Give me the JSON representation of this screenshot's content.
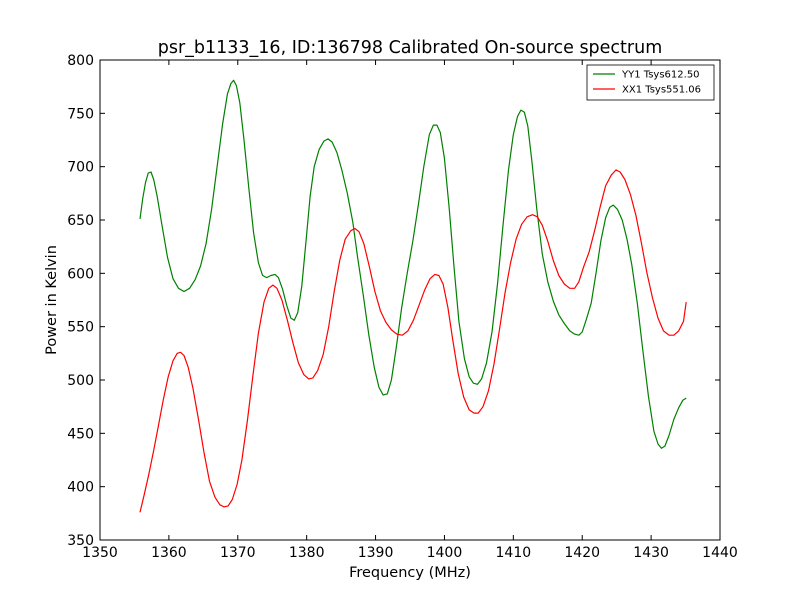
{
  "chart_data": {
    "type": "line",
    "title": "psr_b1133_16, ID:136798 Calibrated On-source spectrum",
    "xlabel": "Frequency (MHz)",
    "ylabel": "Power in Kelvin",
    "xlim": [
      1350,
      1440
    ],
    "ylim": [
      350,
      800
    ],
    "xticks": [
      1350,
      1360,
      1370,
      1380,
      1390,
      1400,
      1410,
      1420,
      1430,
      1440
    ],
    "yticks": [
      350,
      400,
      450,
      500,
      550,
      600,
      650,
      700,
      750,
      800
    ],
    "grid": false,
    "legend": "top-right",
    "series": [
      {
        "name": "YY1 Tsys612.50",
        "color": "#008000",
        "points": [
          [
            1355.8,
            651
          ],
          [
            1356.2,
            670
          ],
          [
            1356.6,
            685
          ],
          [
            1357.0,
            694
          ],
          [
            1357.4,
            695
          ],
          [
            1357.8,
            688
          ],
          [
            1358.3,
            672
          ],
          [
            1359.0,
            645
          ],
          [
            1359.8,
            615
          ],
          [
            1360.6,
            595
          ],
          [
            1361.4,
            586
          ],
          [
            1362.2,
            583
          ],
          [
            1363.0,
            586
          ],
          [
            1363.8,
            594
          ],
          [
            1364.6,
            607
          ],
          [
            1365.4,
            628
          ],
          [
            1366.2,
            660
          ],
          [
            1367.0,
            700
          ],
          [
            1367.8,
            740
          ],
          [
            1368.5,
            768
          ],
          [
            1369.0,
            778
          ],
          [
            1369.4,
            781
          ],
          [
            1369.8,
            776
          ],
          [
            1370.3,
            760
          ],
          [
            1370.9,
            725
          ],
          [
            1371.6,
            680
          ],
          [
            1372.3,
            638
          ],
          [
            1373.0,
            610
          ],
          [
            1373.6,
            598
          ],
          [
            1374.2,
            596
          ],
          [
            1374.8,
            598
          ],
          [
            1375.4,
            599
          ],
          [
            1375.9,
            596
          ],
          [
            1376.5,
            585
          ],
          [
            1377.1,
            570
          ],
          [
            1377.7,
            558
          ],
          [
            1378.2,
            556
          ],
          [
            1378.7,
            563
          ],
          [
            1379.3,
            588
          ],
          [
            1379.9,
            630
          ],
          [
            1380.5,
            672
          ],
          [
            1381.1,
            700
          ],
          [
            1381.8,
            716
          ],
          [
            1382.5,
            724
          ],
          [
            1383.1,
            726
          ],
          [
            1383.7,
            723
          ],
          [
            1384.4,
            713
          ],
          [
            1385.1,
            697
          ],
          [
            1385.9,
            675
          ],
          [
            1386.7,
            648
          ],
          [
            1387.4,
            615
          ],
          [
            1388.2,
            580
          ],
          [
            1389.0,
            543
          ],
          [
            1389.8,
            512
          ],
          [
            1390.5,
            493
          ],
          [
            1391.1,
            486
          ],
          [
            1391.7,
            487
          ],
          [
            1392.3,
            500
          ],
          [
            1393.0,
            530
          ],
          [
            1393.8,
            568
          ],
          [
            1394.6,
            600
          ],
          [
            1395.4,
            630
          ],
          [
            1396.2,
            664
          ],
          [
            1397.0,
            700
          ],
          [
            1397.8,
            730
          ],
          [
            1398.4,
            739
          ],
          [
            1398.9,
            739
          ],
          [
            1399.4,
            732
          ],
          [
            1400.0,
            708
          ],
          [
            1400.7,
            660
          ],
          [
            1401.4,
            605
          ],
          [
            1402.1,
            555
          ],
          [
            1402.9,
            520
          ],
          [
            1403.6,
            503
          ],
          [
            1404.2,
            497
          ],
          [
            1404.8,
            496
          ],
          [
            1405.4,
            501
          ],
          [
            1406.1,
            516
          ],
          [
            1406.9,
            545
          ],
          [
            1407.7,
            590
          ],
          [
            1408.5,
            645
          ],
          [
            1409.3,
            697
          ],
          [
            1410.0,
            730
          ],
          [
            1410.6,
            747
          ],
          [
            1411.1,
            753
          ],
          [
            1411.6,
            751
          ],
          [
            1412.1,
            738
          ],
          [
            1412.7,
            705
          ],
          [
            1413.4,
            660
          ],
          [
            1414.2,
            618
          ],
          [
            1415.0,
            592
          ],
          [
            1415.8,
            574
          ],
          [
            1416.6,
            561
          ],
          [
            1417.4,
            553
          ],
          [
            1418.2,
            546
          ],
          [
            1418.9,
            543
          ],
          [
            1419.5,
            542
          ],
          [
            1420.0,
            545
          ],
          [
            1420.6,
            557
          ],
          [
            1421.3,
            572
          ],
          [
            1422.0,
            600
          ],
          [
            1422.7,
            630
          ],
          [
            1423.4,
            652
          ],
          [
            1424.0,
            662
          ],
          [
            1424.5,
            664
          ],
          [
            1425.1,
            660
          ],
          [
            1425.8,
            650
          ],
          [
            1426.5,
            632
          ],
          [
            1427.2,
            608
          ],
          [
            1428.0,
            572
          ],
          [
            1428.8,
            528
          ],
          [
            1429.6,
            485
          ],
          [
            1430.4,
            452
          ],
          [
            1431.0,
            440
          ],
          [
            1431.5,
            436
          ],
          [
            1432.0,
            438
          ],
          [
            1432.6,
            448
          ],
          [
            1433.3,
            463
          ],
          [
            1434.0,
            474
          ],
          [
            1434.6,
            481
          ],
          [
            1435.1,
            483
          ]
        ]
      },
      {
        "name": "XX1 Tsys551.06",
        "color": "#ff0000",
        "points": [
          [
            1355.8,
            376
          ],
          [
            1356.4,
            392
          ],
          [
            1357.1,
            412
          ],
          [
            1357.8,
            434
          ],
          [
            1358.5,
            458
          ],
          [
            1359.2,
            482
          ],
          [
            1359.9,
            503
          ],
          [
            1360.6,
            518
          ],
          [
            1361.2,
            525
          ],
          [
            1361.7,
            526
          ],
          [
            1362.2,
            523
          ],
          [
            1362.8,
            512
          ],
          [
            1363.5,
            492
          ],
          [
            1364.3,
            463
          ],
          [
            1365.1,
            432
          ],
          [
            1365.9,
            405
          ],
          [
            1366.7,
            390
          ],
          [
            1367.4,
            383
          ],
          [
            1368.0,
            381
          ],
          [
            1368.6,
            382
          ],
          [
            1369.2,
            388
          ],
          [
            1369.9,
            402
          ],
          [
            1370.6,
            425
          ],
          [
            1371.4,
            462
          ],
          [
            1372.2,
            504
          ],
          [
            1373.0,
            544
          ],
          [
            1373.8,
            573
          ],
          [
            1374.5,
            586
          ],
          [
            1375.1,
            589
          ],
          [
            1375.7,
            586
          ],
          [
            1376.4,
            575
          ],
          [
            1377.2,
            556
          ],
          [
            1378.0,
            535
          ],
          [
            1378.8,
            516
          ],
          [
            1379.6,
            505
          ],
          [
            1380.3,
            501
          ],
          [
            1380.9,
            502
          ],
          [
            1381.6,
            509
          ],
          [
            1382.4,
            524
          ],
          [
            1383.2,
            550
          ],
          [
            1384.0,
            583
          ],
          [
            1384.8,
            612
          ],
          [
            1385.6,
            632
          ],
          [
            1386.4,
            640
          ],
          [
            1387.0,
            642
          ],
          [
            1387.6,
            639
          ],
          [
            1388.3,
            628
          ],
          [
            1389.1,
            606
          ],
          [
            1389.9,
            583
          ],
          [
            1390.7,
            565
          ],
          [
            1391.5,
            554
          ],
          [
            1392.3,
            547
          ],
          [
            1393.1,
            543
          ],
          [
            1393.9,
            542
          ],
          [
            1394.7,
            546
          ],
          [
            1395.5,
            556
          ],
          [
            1396.3,
            570
          ],
          [
            1397.1,
            584
          ],
          [
            1397.9,
            595
          ],
          [
            1398.6,
            599
          ],
          [
            1399.2,
            598
          ],
          [
            1399.8,
            590
          ],
          [
            1400.5,
            568
          ],
          [
            1401.2,
            538
          ],
          [
            1402.0,
            506
          ],
          [
            1402.8,
            484
          ],
          [
            1403.6,
            472
          ],
          [
            1404.3,
            469
          ],
          [
            1404.9,
            469
          ],
          [
            1405.6,
            475
          ],
          [
            1406.4,
            490
          ],
          [
            1407.2,
            515
          ],
          [
            1408.0,
            548
          ],
          [
            1408.8,
            582
          ],
          [
            1409.6,
            610
          ],
          [
            1410.4,
            632
          ],
          [
            1411.2,
            646
          ],
          [
            1412.0,
            653
          ],
          [
            1412.8,
            655
          ],
          [
            1413.5,
            653
          ],
          [
            1414.2,
            645
          ],
          [
            1415.0,
            630
          ],
          [
            1415.8,
            612
          ],
          [
            1416.6,
            598
          ],
          [
            1417.4,
            590
          ],
          [
            1418.2,
            586
          ],
          [
            1418.9,
            586
          ],
          [
            1419.5,
            592
          ],
          [
            1420.2,
            606
          ],
          [
            1421.0,
            620
          ],
          [
            1421.8,
            640
          ],
          [
            1422.6,
            662
          ],
          [
            1423.4,
            682
          ],
          [
            1424.2,
            692
          ],
          [
            1424.9,
            697
          ],
          [
            1425.5,
            695
          ],
          [
            1426.2,
            688
          ],
          [
            1427.0,
            674
          ],
          [
            1427.8,
            654
          ],
          [
            1428.6,
            628
          ],
          [
            1429.4,
            600
          ],
          [
            1430.2,
            577
          ],
          [
            1431.0,
            558
          ],
          [
            1431.8,
            546
          ],
          [
            1432.6,
            542
          ],
          [
            1433.3,
            542
          ],
          [
            1434.0,
            546
          ],
          [
            1434.7,
            555
          ],
          [
            1435.1,
            573
          ]
        ]
      }
    ]
  }
}
